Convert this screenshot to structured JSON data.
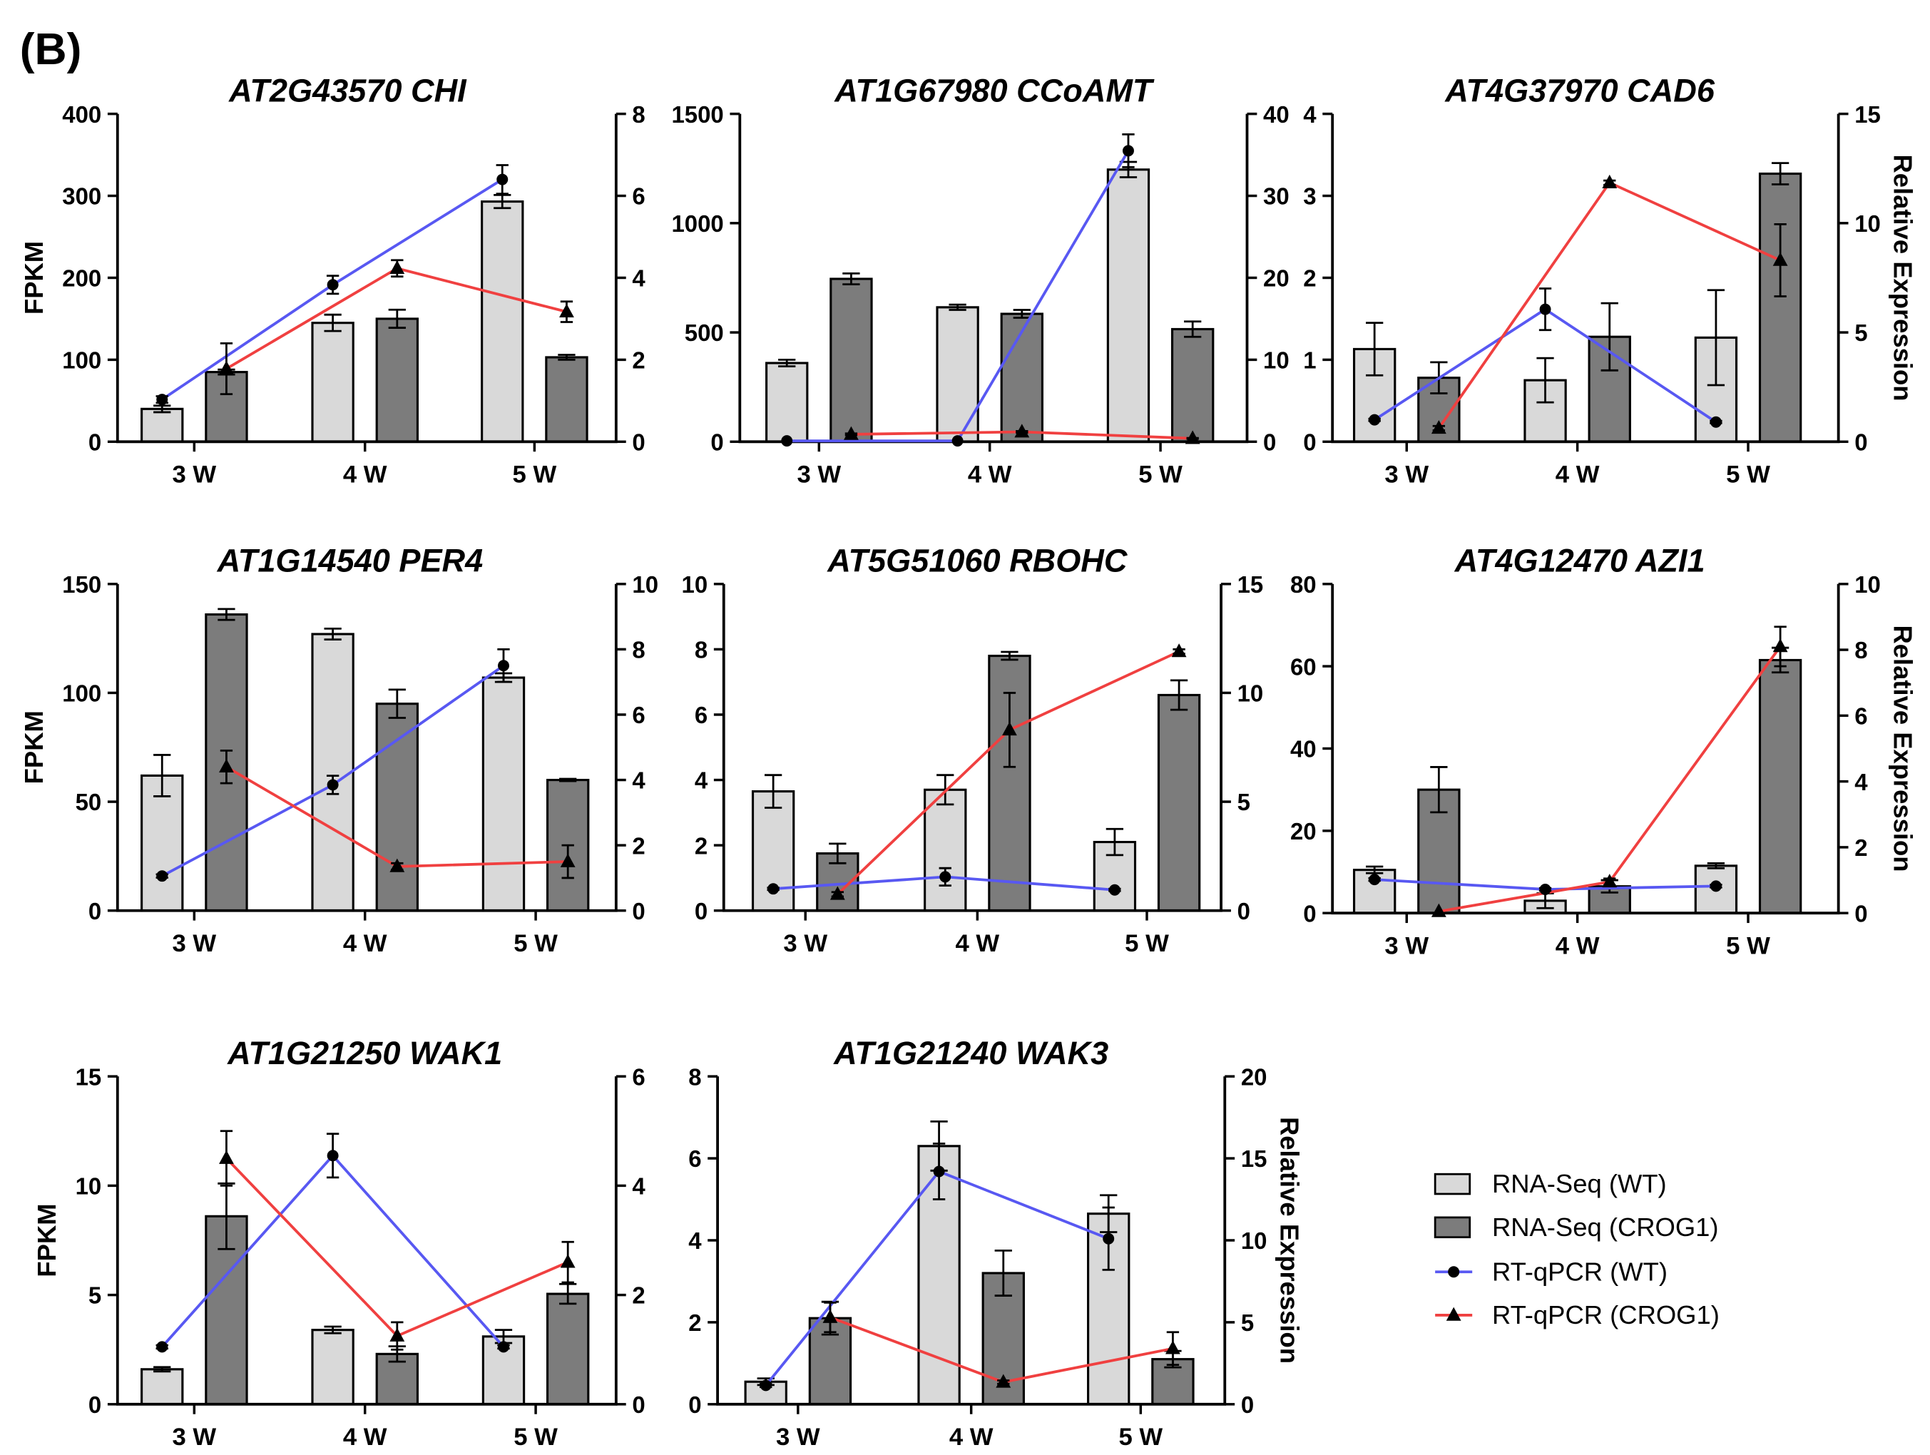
{
  "figure": {
    "panel_label": "(B)"
  },
  "legend": [
    {
      "label": "RNA-Seq (WT)",
      "color": "#d9d9d9"
    },
    {
      "label": "RNA-Seq (CROG1)",
      "color": "#7c7c7c"
    },
    {
      "label": "RT-qPCR (WT)",
      "color": "#5858f2"
    },
    {
      "label": "RT-qPCR (CROG1)",
      "color": "#f04040"
    }
  ],
  "chart_data": [
    {
      "type": "bar",
      "title": "AT2G43570 CHI",
      "categories": [
        "3 W",
        "4 W",
        "5 W"
      ],
      "ylabel": "FPKM",
      "ylim": [
        0,
        400
      ],
      "yticks": [
        0,
        100,
        200,
        300,
        400
      ],
      "y2lim": [
        0,
        8
      ],
      "y2ticks": [
        0,
        2,
        4,
        6,
        8
      ],
      "series": [
        {
          "legend_index": 0,
          "y_axis": 1,
          "values": [
            40,
            145,
            293
          ],
          "errors": [
            4,
            10,
            8
          ]
        },
        {
          "legend_index": 1,
          "y_axis": 1,
          "values": [
            85,
            150,
            103
          ],
          "errors": [
            3,
            11,
            3
          ]
        },
        {
          "legend_index": 2,
          "y_axis": 2,
          "values": [
            1.03,
            3.83,
            6.4
          ],
          "errors": [
            0.08,
            0.22,
            0.35
          ]
        },
        {
          "legend_index": 3,
          "y_axis": 2,
          "values": [
            1.78,
            4.23,
            3.17
          ],
          "errors": [
            0.62,
            0.2,
            0.25
          ]
        }
      ]
    },
    {
      "type": "bar",
      "title": "AT1G67980 CCoAMT",
      "categories": [
        "3 W",
        "4 W",
        "5 W"
      ],
      "ylim": [
        0,
        1500
      ],
      "yticks": [
        0,
        500,
        1000,
        1500
      ],
      "y2lim": [
        0,
        40
      ],
      "y2ticks": [
        0,
        10,
        20,
        30,
        40
      ],
      "series": [
        {
          "legend_index": 0,
          "y_axis": 1,
          "values": [
            360,
            615,
            1245
          ],
          "errors": [
            15,
            12,
            35
          ]
        },
        {
          "legend_index": 1,
          "y_axis": 1,
          "values": [
            745,
            585,
            515
          ],
          "errors": [
            25,
            18,
            35
          ]
        },
        {
          "legend_index": 2,
          "y_axis": 2,
          "values": [
            0.1,
            0.1,
            35.5
          ],
          "errors": [
            0,
            0,
            2
          ]
        },
        {
          "legend_index": 3,
          "y_axis": 2,
          "values": [
            0.9,
            1.2,
            0.4
          ],
          "errors": [
            0.1,
            0.1,
            0.05
          ]
        }
      ]
    },
    {
      "type": "bar",
      "title": "AT4G37970 CAD6",
      "categories": [
        "3 W",
        "4 W",
        "5 W"
      ],
      "y2label": "Relative Expression",
      "ylim": [
        0,
        4
      ],
      "yticks": [
        0,
        1,
        2,
        3,
        4
      ],
      "y2lim": [
        0,
        15
      ],
      "y2ticks": [
        0,
        5,
        10,
        15
      ],
      "series": [
        {
          "legend_index": 0,
          "y_axis": 1,
          "values": [
            1.13,
            0.75,
            1.27
          ],
          "errors": [
            0.32,
            0.27,
            0.58
          ]
        },
        {
          "legend_index": 1,
          "y_axis": 1,
          "values": [
            0.78,
            1.28,
            3.27
          ],
          "errors": [
            0.19,
            0.41,
            0.13
          ]
        },
        {
          "legend_index": 2,
          "y_axis": 2,
          "values": [
            1.0,
            6.06,
            0.9
          ],
          "errors": [
            0.05,
            0.95,
            0.05
          ]
        },
        {
          "legend_index": 3,
          "y_axis": 2,
          "values": [
            0.62,
            11.85,
            8.3
          ],
          "errors": [
            0.1,
            0.1,
            1.65
          ]
        }
      ]
    },
    {
      "type": "bar",
      "title": "AT1G14540 PER4",
      "categories": [
        "3 W",
        "4 W",
        "5 W"
      ],
      "ylabel": "FPKM",
      "ylim": [
        0,
        150
      ],
      "yticks": [
        0,
        50,
        100,
        150
      ],
      "y2lim": [
        0,
        10
      ],
      "y2ticks": [
        0,
        2,
        4,
        6,
        8,
        10
      ],
      "series": [
        {
          "legend_index": 0,
          "y_axis": 1,
          "values": [
            62,
            127,
            107
          ],
          "errors": [
            9.5,
            2.5,
            2
          ]
        },
        {
          "legend_index": 1,
          "y_axis": 1,
          "values": [
            136,
            95,
            60
          ],
          "errors": [
            2.5,
            6.5,
            0.5
          ]
        },
        {
          "legend_index": 2,
          "y_axis": 2,
          "values": [
            1.06,
            3.85,
            7.5
          ],
          "errors": [
            0.05,
            0.28,
            0.5
          ]
        },
        {
          "legend_index": 3,
          "y_axis": 2,
          "values": [
            4.4,
            1.35,
            1.5
          ],
          "errors": [
            0.5,
            0.1,
            0.5
          ]
        }
      ]
    },
    {
      "type": "bar",
      "title": "AT5G51060 RBOHC",
      "categories": [
        "3 W",
        "4 W",
        "5 W"
      ],
      "ylim": [
        0,
        10
      ],
      "yticks": [
        0,
        2,
        4,
        6,
        8,
        10
      ],
      "y2lim": [
        0,
        15
      ],
      "y2ticks": [
        0,
        5,
        10,
        15
      ],
      "series": [
        {
          "legend_index": 0,
          "y_axis": 1,
          "values": [
            3.65,
            3.7,
            2.1
          ],
          "errors": [
            0.5,
            0.45,
            0.4
          ]
        },
        {
          "legend_index": 1,
          "y_axis": 1,
          "values": [
            1.75,
            7.8,
            6.6
          ],
          "errors": [
            0.3,
            0.12,
            0.45
          ]
        },
        {
          "legend_index": 2,
          "y_axis": 2,
          "values": [
            1.0,
            1.55,
            0.95
          ],
          "errors": [
            0.05,
            0.4,
            0.05
          ]
        },
        {
          "legend_index": 3,
          "y_axis": 2,
          "values": [
            0.75,
            8.3,
            11.9
          ],
          "errors": [
            0.1,
            1.7,
            0.1
          ]
        }
      ]
    },
    {
      "type": "bar",
      "title": "AT4G12470 AZI1",
      "categories": [
        "3 W",
        "4 W",
        "5 W"
      ],
      "y2label": "Relative Expression",
      "ylim": [
        0,
        80
      ],
      "yticks": [
        0,
        20,
        40,
        60,
        80
      ],
      "y2lim": [
        0,
        10
      ],
      "y2ticks": [
        0,
        2,
        4,
        6,
        8,
        10
      ],
      "series": [
        {
          "legend_index": 0,
          "y_axis": 1,
          "values": [
            10.5,
            3,
            11.5
          ],
          "errors": [
            0.8,
            1.8,
            0.6
          ]
        },
        {
          "legend_index": 1,
          "y_axis": 1,
          "values": [
            30,
            6.5,
            61.5
          ],
          "errors": [
            5.5,
            1.5,
            3
          ]
        },
        {
          "legend_index": 2,
          "y_axis": 2,
          "values": [
            1.02,
            0.72,
            0.82
          ],
          "errors": [
            0.04,
            0.04,
            0.04
          ]
        },
        {
          "legend_index": 3,
          "y_axis": 2,
          "values": [
            0.05,
            0.95,
            8.1
          ],
          "errors": [
            0,
            0.1,
            0.6
          ]
        }
      ]
    },
    {
      "type": "bar",
      "title": "AT1G21250 WAK1",
      "categories": [
        "3 W",
        "4 W",
        "5 W"
      ],
      "ylabel": "FPKM",
      "ylim": [
        0,
        15
      ],
      "yticks": [
        0,
        5,
        10,
        15
      ],
      "y2lim": [
        0,
        6
      ],
      "y2ticks": [
        0,
        2,
        4,
        6
      ],
      "series": [
        {
          "legend_index": 0,
          "y_axis": 1,
          "values": [
            1.6,
            3.4,
            3.1
          ],
          "errors": [
            0.1,
            0.15,
            0.3
          ]
        },
        {
          "legend_index": 1,
          "y_axis": 1,
          "values": [
            8.6,
            2.3,
            5.05
          ],
          "errors": [
            1.5,
            0.35,
            0.45
          ]
        },
        {
          "legend_index": 2,
          "y_axis": 2,
          "values": [
            1.05,
            4.55,
            1.05
          ],
          "errors": [
            0.03,
            0.4,
            0.03
          ]
        },
        {
          "legend_index": 3,
          "y_axis": 2,
          "values": [
            4.5,
            1.25,
            2.6
          ],
          "errors": [
            0.5,
            0.25,
            0.37
          ]
        }
      ]
    },
    {
      "type": "bar",
      "title": "AT1G21240 WAK3",
      "categories": [
        "3 W",
        "4 W",
        "5 W"
      ],
      "y2label": "Relative Expression",
      "ylim": [
        0,
        8
      ],
      "yticks": [
        0,
        2,
        4,
        6,
        8
      ],
      "y2lim": [
        0,
        20
      ],
      "y2ticks": [
        0,
        5,
        10,
        15,
        20
      ],
      "series": [
        {
          "legend_index": 0,
          "y_axis": 1,
          "values": [
            0.55,
            6.3,
            4.65
          ],
          "errors": [
            0.08,
            0.6,
            0.45
          ]
        },
        {
          "legend_index": 1,
          "y_axis": 1,
          "values": [
            2.1,
            3.2,
            1.1
          ],
          "errors": [
            0.4,
            0.55,
            0.2
          ]
        },
        {
          "legend_index": 2,
          "y_axis": 2,
          "values": [
            1.15,
            14.2,
            10.1
          ],
          "errors": [
            0.1,
            1.7,
            1.9
          ]
        },
        {
          "legend_index": 3,
          "y_axis": 2,
          "values": [
            5.3,
            1.35,
            3.4
          ],
          "errors": [
            0.9,
            0.1,
            1.0
          ]
        }
      ]
    }
  ]
}
